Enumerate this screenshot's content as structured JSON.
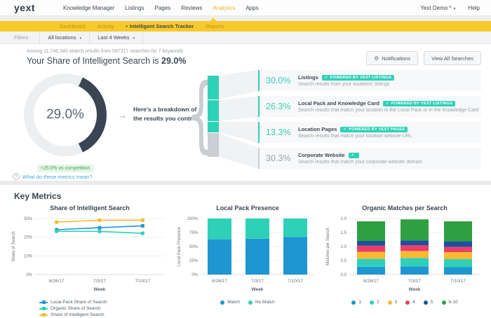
{
  "icons": {
    "gear": "⚙",
    "caret": "▾",
    "arrow": "→",
    "bullet": "•",
    "question": "?",
    "check": "✓",
    "brace": "{"
  },
  "colors": {
    "teal": "#2ED1B8",
    "gold": "#F8C92A",
    "gold_text": "#F0B429",
    "blue": "#1E96D2",
    "navy": "#3B4752",
    "pink": "#EA3F6B",
    "dark_blue": "#1D4F9C",
    "green": "#2FA042",
    "yellow": "#F9BA32",
    "badge_green_bg": "#E4F5E6",
    "badge_green_text": "#48A44C",
    "donut_dark": "#3A4554",
    "donut_light": "#ECEEF0",
    "bar_gray": "#C9CFD4"
  },
  "topnav": {
    "logo": "yext",
    "items": [
      {
        "label": "Knowledge Manager"
      },
      {
        "label": "Listings"
      },
      {
        "label": "Pages"
      },
      {
        "label": "Reviews"
      },
      {
        "label": "Analytics"
      },
      {
        "label": "Apps"
      }
    ],
    "account": "Yext Demo *",
    "help": "Help"
  },
  "subnav": {
    "items": [
      {
        "label": "Dashboard"
      },
      {
        "label": "Activity"
      },
      {
        "label": "Intelligent Search Tracker"
      },
      {
        "label": "Reports"
      }
    ]
  },
  "filters": {
    "label": "Filters",
    "location": "All locations",
    "date_range": "Last 4 Weeks"
  },
  "hero": {
    "summary": "Among 11,746,340 search results from 587317 searches for 7 keywords",
    "title_prefix": "Your Share of Intelligent Search is ",
    "title_value": "29.0%",
    "notifications_label": "Notifications",
    "view_all_label": "View All Searches",
    "donut_value": "29.0%",
    "badge": "+25.0% vs competition",
    "help_link": "What do these metrics mean?",
    "intro_line1": "Here's a breakdown of",
    "intro_line2": "the results you control",
    "share_bar": {
      "segments": [
        30.0,
        26.3,
        13.3,
        30.3
      ],
      "colors": [
        "#2ED1B8",
        "#2ED1B8",
        "#2ED1B8",
        "#C9CFD4"
      ]
    },
    "rows": [
      {
        "pct": "30.0%",
        "title": "Listings",
        "badge": "POWERED BY YEXT LISTINGS",
        "desc": "Search results from your locations' listings"
      },
      {
        "pct": "26.3%",
        "title": "Local Pack and Knowledge Card",
        "badge": "POWERED BY YEXT LISTINGS",
        "desc": "Search results that match your location in the Local Pack or in the Knowledge Card"
      },
      {
        "pct": "13.3%",
        "title": "Location Pages",
        "badge": "POWERED BY YEXT PAGES",
        "desc": "Search results that match your location website URL"
      },
      {
        "pct": "30.3%",
        "title": "Corporate Website",
        "badge": null,
        "desc": "Search results that match your corporate website domain"
      }
    ]
  },
  "key_metrics": {
    "heading": "Key Metrics"
  },
  "chart_data": [
    {
      "type": "line",
      "title": "Share of Intelligent Search",
      "x": [
        "6/26/17",
        "7/3/17",
        "7/10/17"
      ],
      "xlabel": "Week",
      "ylabel": "Share of Search",
      "ylim": [
        0,
        30
      ],
      "yticks": [
        "0%",
        "10%",
        "20%",
        "30%"
      ],
      "ytick_values": [
        0,
        10,
        20,
        30
      ],
      "grid": true,
      "legend_position": "bottom",
      "series": [
        {
          "name": "Local Pack Share of Search",
          "color": "#1E96D2",
          "values": [
            24.0,
            25.1,
            26.1
          ]
        },
        {
          "name": "Organic Share of Search",
          "color": "#2ED1B8",
          "values": [
            23.2,
            23.1,
            22.1
          ]
        },
        {
          "name": "Share of Intelligent Search",
          "color": "#F9BA32",
          "values": [
            28.1,
            29.1,
            29.1
          ]
        }
      ]
    },
    {
      "type": "bar",
      "title": "Local Pack Presence",
      "x": [
        "6/26/17",
        "7/3/17",
        "7/10/17"
      ],
      "xlabel": "Week",
      "ylabel": "Local Pack Presence",
      "ylim": [
        0,
        100
      ],
      "yticks": [
        "0%",
        "25%",
        "50%",
        "75%",
        "100%"
      ],
      "ytick_values": [
        0,
        25,
        50,
        75,
        100
      ],
      "stacked": true,
      "grid": true,
      "legend_position": "bottom",
      "series": [
        {
          "name": "Match",
          "color": "#1E96D2",
          "values": [
            63,
            64,
            67
          ]
        },
        {
          "name": "No Match",
          "color": "#2ED1B8",
          "values": [
            37,
            36,
            33
          ]
        }
      ]
    },
    {
      "type": "bar",
      "title": "Organic Matches per Search",
      "x": [
        "6/26/17",
        "7/3/17",
        "7/10/17"
      ],
      "xlabel": "Week",
      "ylabel": "Matches per Search",
      "ylim": [
        0,
        2
      ],
      "yticks": [
        "0.0",
        "0.5",
        "1.0",
        "1.5",
        "2.0"
      ],
      "ytick_values": [
        0,
        0.5,
        1,
        1.5,
        2
      ],
      "stacked": true,
      "grid": true,
      "legend_position": "bottom",
      "series": [
        {
          "name": "1",
          "color": "#1E96D2",
          "values": [
            0.28,
            0.29,
            0.27
          ]
        },
        {
          "name": "2",
          "color": "#2ED1B8",
          "values": [
            0.28,
            0.3,
            0.28
          ]
        },
        {
          "name": "3",
          "color": "#F9BA32",
          "values": [
            0.25,
            0.25,
            0.25
          ]
        },
        {
          "name": "4",
          "color": "#EA3F6B",
          "values": [
            0.22,
            0.21,
            0.19
          ]
        },
        {
          "name": "5",
          "color": "#1D4F9C",
          "values": [
            0.17,
            0.17,
            0.2
          ]
        },
        {
          "name": "6-10",
          "color": "#2FA042",
          "values": [
            0.7,
            0.75,
            0.71
          ]
        }
      ]
    }
  ]
}
